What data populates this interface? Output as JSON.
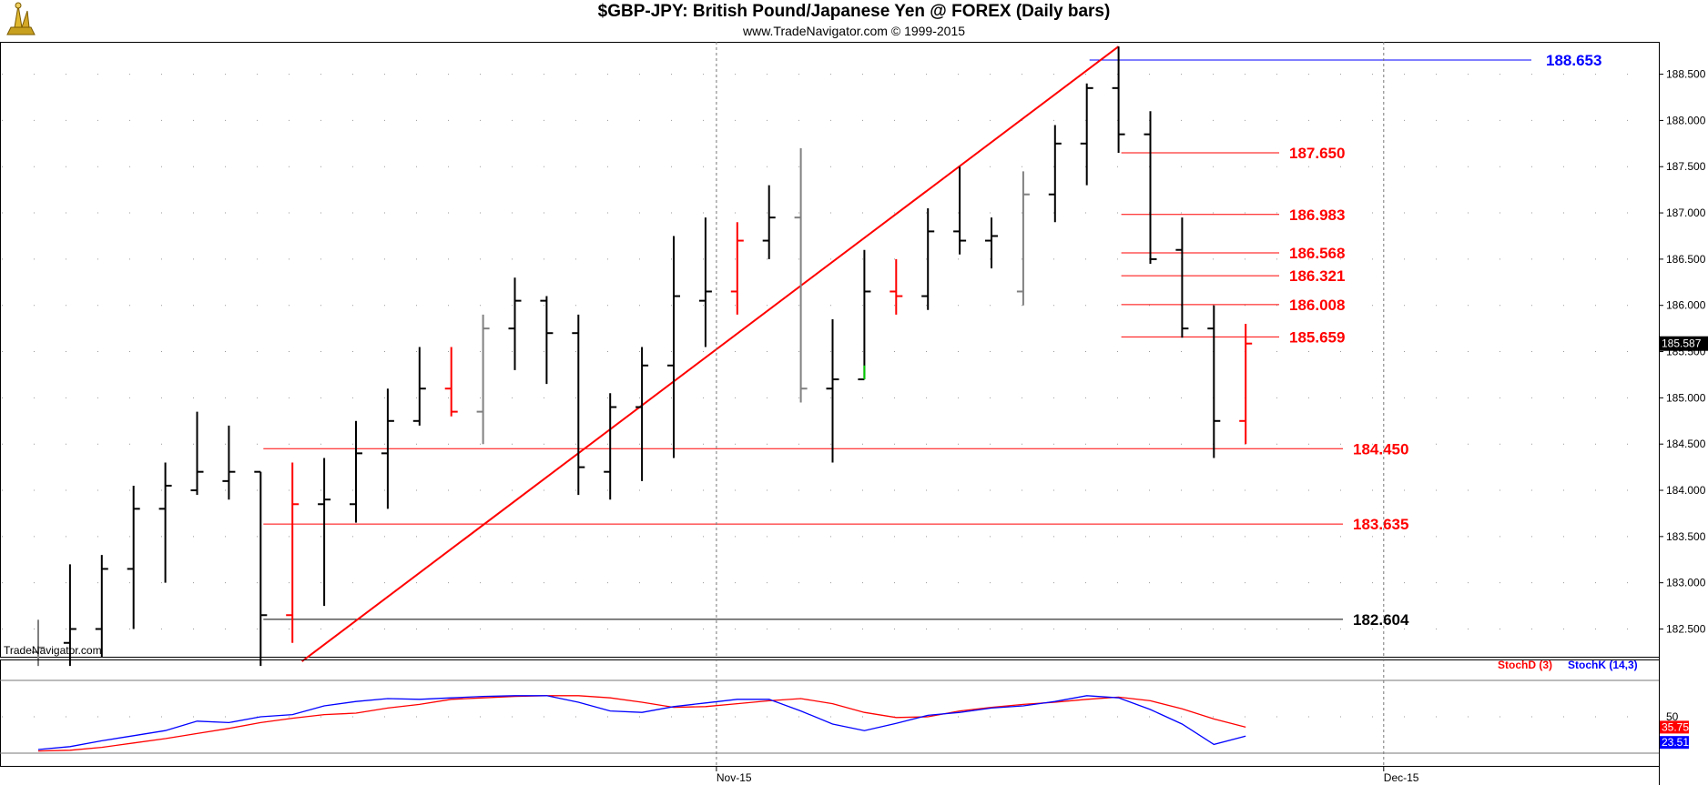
{
  "header": {
    "title": "$GBP-JPY:  British Pound/Japanese Yen @ FOREX  (Daily bars)",
    "subtitle": "www.TradeNavigator.com © 1999-2015"
  },
  "watermark": "TradeNavigator.com",
  "colors": {
    "up": "#000000",
    "down": "#ff0000",
    "neutral": "#808080",
    "green": "#00cc00",
    "stochD": "#ff0000",
    "stochK": "#0000ff"
  },
  "chart_data": [
    {
      "type": "ohlc",
      "title": "$GBP-JPY:  British Pound/Japanese Yen @ FOREX  (Daily bars)",
      "ylim": [
        182.2,
        188.85
      ],
      "y_ticks": [
        "182.500",
        "183.000",
        "183.500",
        "184.000",
        "184.500",
        "185.000",
        "185.500",
        "186.000",
        "186.500",
        "187.000",
        "187.500",
        "188.000",
        "188.500"
      ],
      "x_labels": [
        {
          "label": "Nov-15",
          "bar": 21
        },
        {
          "label": "Dec-15",
          "bar": 42
        }
      ],
      "last_price": "185.587",
      "bars": [
        {
          "o": 182.25,
          "h": 182.6,
          "l": 182.1,
          "c": 182.3,
          "color": "neutral"
        },
        {
          "o": 182.35,
          "h": 183.2,
          "l": 182.1,
          "c": 182.5,
          "color": "up"
        },
        {
          "o": 182.5,
          "h": 183.3,
          "l": 182.2,
          "c": 183.15,
          "color": "up"
        },
        {
          "o": 183.15,
          "h": 184.05,
          "l": 182.5,
          "c": 183.8,
          "color": "up"
        },
        {
          "o": 183.8,
          "h": 184.3,
          "l": 183.0,
          "c": 184.05,
          "color": "up"
        },
        {
          "o": 184.0,
          "h": 184.85,
          "l": 183.95,
          "c": 184.2,
          "color": "up"
        },
        {
          "o": 184.1,
          "h": 184.7,
          "l": 183.9,
          "c": 184.2,
          "color": "up"
        },
        {
          "o": 184.2,
          "h": 184.2,
          "l": 182.1,
          "c": 182.65,
          "color": "up"
        },
        {
          "o": 182.65,
          "h": 184.3,
          "l": 182.35,
          "c": 183.85,
          "color": "down"
        },
        {
          "o": 183.85,
          "h": 184.35,
          "l": 182.75,
          "c": 183.9,
          "color": "up"
        },
        {
          "o": 183.85,
          "h": 184.75,
          "l": 183.65,
          "c": 184.4,
          "color": "up"
        },
        {
          "o": 184.4,
          "h": 185.1,
          "l": 183.8,
          "c": 184.75,
          "color": "up"
        },
        {
          "o": 184.75,
          "h": 185.55,
          "l": 184.7,
          "c": 185.1,
          "color": "up"
        },
        {
          "o": 185.1,
          "h": 185.55,
          "l": 184.8,
          "c": 184.85,
          "color": "down"
        },
        {
          "o": 184.85,
          "h": 185.9,
          "l": 184.5,
          "c": 185.75,
          "color": "neutral"
        },
        {
          "o": 185.75,
          "h": 186.3,
          "l": 185.3,
          "c": 186.05,
          "color": "up"
        },
        {
          "o": 186.05,
          "h": 186.1,
          "l": 185.15,
          "c": 185.7,
          "color": "up"
        },
        {
          "o": 185.7,
          "h": 185.9,
          "l": 183.95,
          "c": 184.25,
          "color": "up"
        },
        {
          "o": 184.2,
          "h": 185.05,
          "l": 183.9,
          "c": 184.9,
          "color": "up"
        },
        {
          "o": 184.9,
          "h": 185.55,
          "l": 184.1,
          "c": 185.35,
          "color": "up"
        },
        {
          "o": 185.35,
          "h": 186.75,
          "l": 184.35,
          "c": 186.1,
          "color": "up"
        },
        {
          "o": 186.05,
          "h": 186.95,
          "l": 185.55,
          "c": 186.15,
          "color": "up"
        },
        {
          "o": 186.15,
          "h": 186.9,
          "l": 185.9,
          "c": 186.7,
          "color": "down"
        },
        {
          "o": 186.7,
          "h": 187.3,
          "l": 186.5,
          "c": 186.95,
          "color": "up"
        },
        {
          "o": 186.95,
          "h": 187.7,
          "l": 184.95,
          "c": 185.1,
          "color": "neutral"
        },
        {
          "o": 185.1,
          "h": 185.85,
          "l": 184.3,
          "c": 185.2,
          "color": "up"
        },
        {
          "o": 185.2,
          "h": 186.6,
          "l": 185.2,
          "c": 186.15,
          "color": "up"
        },
        {
          "o": 186.15,
          "h": 186.5,
          "l": 185.9,
          "c": 186.1,
          "color": "down"
        },
        {
          "o": 186.1,
          "h": 187.05,
          "l": 185.95,
          "c": 186.8,
          "color": "up"
        },
        {
          "o": 186.8,
          "h": 187.5,
          "l": 186.55,
          "c": 186.7,
          "color": "up"
        },
        {
          "o": 186.7,
          "h": 186.95,
          "l": 186.4,
          "c": 186.75,
          "color": "up"
        },
        {
          "o": 186.15,
          "h": 187.45,
          "l": 186.0,
          "c": 187.2,
          "color": "neutral"
        },
        {
          "o": 187.2,
          "h": 187.95,
          "l": 186.9,
          "c": 187.75,
          "color": "up"
        },
        {
          "o": 187.75,
          "h": 188.4,
          "l": 187.3,
          "c": 188.35,
          "color": "up"
        },
        {
          "o": 188.35,
          "h": 188.8,
          "l": 187.65,
          "c": 187.85,
          "color": "up"
        },
        {
          "o": 187.85,
          "h": 188.1,
          "l": 186.45,
          "c": 186.5,
          "color": "up"
        },
        {
          "o": 186.6,
          "h": 186.95,
          "l": 185.65,
          "c": 185.75,
          "color": "up"
        },
        {
          "o": 185.75,
          "h": 186.0,
          "l": 184.35,
          "c": 184.75,
          "color": "up"
        },
        {
          "o": 184.75,
          "h": 185.8,
          "l": 184.5,
          "c": 185.587,
          "color": "down"
        }
      ],
      "levels": [
        {
          "value": 188.653,
          "label": "188.653",
          "color": "#0000ff",
          "from_bar": 33
        },
        {
          "value": 187.65,
          "label": "187.650",
          "color": "#ff0000",
          "from_bar": 34
        },
        {
          "value": 186.983,
          "label": "186.983",
          "color": "#ff0000",
          "from_bar": 34
        },
        {
          "value": 186.568,
          "label": "186.568",
          "color": "#ff0000",
          "from_bar": 34
        },
        {
          "value": 186.321,
          "label": "186.321",
          "color": "#ff0000",
          "from_bar": 34
        },
        {
          "value": 186.008,
          "label": "186.008",
          "color": "#ff0000",
          "from_bar": 34
        },
        {
          "value": 185.659,
          "label": "185.659",
          "color": "#ff0000",
          "from_bar": 34
        },
        {
          "value": 184.45,
          "label": "184.450",
          "color": "#ff0000",
          "from_bar": 7
        },
        {
          "value": 183.635,
          "label": "183.635",
          "color": "#ff0000",
          "from_bar": 7
        },
        {
          "value": 182.604,
          "label": "182.604",
          "color": "#000000",
          "from_bar": 7
        }
      ],
      "trendline": {
        "from": {
          "bar": 8.3,
          "value": 182.15
        },
        "to": {
          "bar": 34,
          "value": 188.8
        },
        "color": "#ff0000"
      }
    },
    {
      "type": "line",
      "title": "",
      "legend": [
        "StochD (3)",
        "StochK (14,3)"
      ],
      "ylim": [
        0,
        100
      ],
      "y_ticks": [
        "50"
      ],
      "last_values": {
        "stochD": "35.75",
        "stochK": "23.51"
      },
      "series": [
        {
          "name": "StochD (3)",
          "color": "#ff0000",
          "values": [
            3,
            4,
            8,
            14,
            20,
            27,
            34,
            42,
            48,
            53,
            55,
            62,
            67,
            74,
            76,
            78,
            79,
            79,
            76,
            70,
            63,
            64,
            68,
            72,
            75,
            68,
            56,
            49,
            50,
            58,
            63,
            67,
            70,
            74,
            77,
            72,
            61,
            47,
            35.75
          ]
        },
        {
          "name": "StochK (14,3)",
          "color": "#0000ff",
          "values": [
            5,
            9,
            17,
            24,
            31,
            44,
            42,
            50,
            53,
            65,
            71,
            75,
            74,
            76,
            78,
            79,
            79,
            70,
            58,
            56,
            64,
            69,
            74,
            74,
            58,
            40,
            31,
            41,
            52,
            56,
            62,
            65,
            71,
            79,
            76,
            60,
            40,
            12,
            23.51
          ]
        }
      ]
    }
  ]
}
